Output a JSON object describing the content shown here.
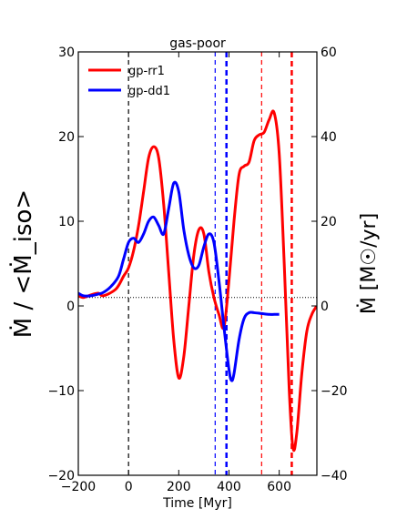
{
  "chart_data": {
    "type": "line",
    "title": "gas-poor",
    "xlabel": "Time [Myr]",
    "ylabel_left": "Ṁ / <Ṁ_iso>",
    "ylabel_right": "Ṁ [M☉/yr]",
    "xlim": [
      -200,
      750
    ],
    "ylim_left": [
      -20,
      30
    ],
    "ylim_right": [
      -40,
      60
    ],
    "xticks": [
      -200,
      0,
      200,
      400,
      600
    ],
    "yticks_left": [
      -20,
      -10,
      0,
      10,
      20,
      30
    ],
    "yticks_right": [
      -40,
      -20,
      0,
      20,
      40,
      60
    ],
    "legend_position": "upper-left",
    "series": [
      {
        "name": "gp-rr1",
        "color": "#ff0000",
        "x": [
          -200,
          -180,
          -150,
          -120,
          -100,
          -50,
          -20,
          0,
          20,
          40,
          60,
          80,
          100,
          120,
          140,
          160,
          180,
          200,
          220,
          240,
          260,
          280,
          300,
          320,
          340,
          360,
          380,
          400,
          420,
          440,
          460,
          480,
          500,
          520,
          540,
          560,
          580,
          600,
          620,
          640,
          655,
          670,
          690,
          710,
          730,
          750
        ],
        "y": [
          1.2,
          1.0,
          1.3,
          1.5,
          1.2,
          2.0,
          3.5,
          4.5,
          6.5,
          9.5,
          13.5,
          17.5,
          18.8,
          17.5,
          12.0,
          4.0,
          -4.0,
          -8.5,
          -6.0,
          0.0,
          6.0,
          9.0,
          8.5,
          4.0,
          1.0,
          -1.0,
          -2.5,
          3.0,
          10.0,
          15.5,
          16.5,
          17.0,
          19.5,
          20.2,
          20.5,
          22.0,
          22.8,
          18.0,
          5.0,
          -10.0,
          -16.8,
          -15.0,
          -8.0,
          -3.0,
          -1.0,
          0.0
        ]
      },
      {
        "name": "gp-dd1",
        "color": "#0000ff",
        "x": [
          -200,
          -180,
          -150,
          -120,
          -100,
          -70,
          -40,
          -20,
          0,
          20,
          40,
          60,
          80,
          100,
          120,
          140,
          160,
          180,
          200,
          220,
          240,
          260,
          280,
          300,
          320,
          340,
          360,
          380,
          400,
          410,
          420,
          440,
          460,
          480,
          500,
          530,
          560,
          580,
          600
        ],
        "y": [
          1.5,
          1.2,
          1.2,
          1.4,
          1.6,
          2.3,
          3.5,
          5.5,
          7.5,
          8.0,
          7.5,
          8.5,
          10.0,
          10.5,
          9.5,
          8.5,
          11.5,
          14.5,
          13.5,
          9.0,
          6.0,
          4.5,
          4.8,
          7.0,
          8.5,
          7.5,
          3.0,
          -2.5,
          -7.5,
          -8.8,
          -8.0,
          -4.0,
          -1.5,
          -0.8,
          -0.8,
          -0.9,
          -1.0,
          -1.0,
          -1.0
        ]
      }
    ],
    "vlines": [
      {
        "x": 0,
        "color": "#000000",
        "style": "dashed",
        "weight": "thin"
      },
      {
        "x": 345,
        "color": "#0000ff",
        "style": "dashed",
        "weight": "thin"
      },
      {
        "x": 390,
        "color": "#0000ff",
        "style": "dashed",
        "weight": "thick"
      },
      {
        "x": 530,
        "color": "#ff0000",
        "style": "dashed",
        "weight": "thin"
      },
      {
        "x": 650,
        "color": "#ff0000",
        "style": "dashed",
        "weight": "thick"
      }
    ],
    "hlines": [
      {
        "y": 1,
        "color": "#000000",
        "style": "dotted"
      }
    ]
  }
}
